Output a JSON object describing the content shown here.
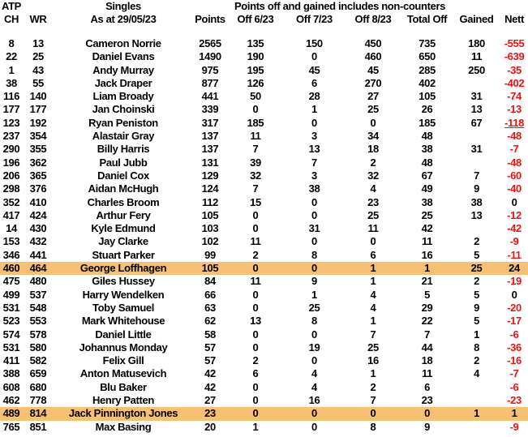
{
  "colors": {
    "text": "#000000",
    "background": "#FFFFFF",
    "nett_negative": "#EE1111",
    "row_highlight": "#F7C173"
  },
  "header": {
    "atp": "ATP",
    "ch": "CH",
    "wr": "WR",
    "singles": "Singles",
    "as_at": "As at 29/05/23",
    "banner": "Points off and gained includes non-counters",
    "points": "Points",
    "off_6_23": "Off 6/23",
    "off_7_23": "Off 7/23",
    "off_8_23": "Off 8/23",
    "total_off": "Total Off",
    "gained": "Gained",
    "nett": "Nett"
  },
  "rows": [
    {
      "ch": "8",
      "wr": "13",
      "name": "Cameron Norrie",
      "points": "2565",
      "off_6_23": "135",
      "off_7_23": "150",
      "off_8_23": "450",
      "total_off": "735",
      "gained": "180",
      "nett": "-555",
      "nett_color": "red",
      "highlight": false
    },
    {
      "ch": "22",
      "wr": "25",
      "name": "Daniel Evans",
      "points": "1490",
      "off_6_23": "190",
      "off_7_23": "0",
      "off_8_23": "460",
      "total_off": "650",
      "gained": "11",
      "nett": "-639",
      "nett_color": "red",
      "highlight": false
    },
    {
      "ch": "1",
      "wr": "43",
      "name": "Andy Murray",
      "points": "975",
      "off_6_23": "195",
      "off_7_23": "45",
      "off_8_23": "45",
      "total_off": "285",
      "gained": "250",
      "nett": "-35",
      "nett_color": "red",
      "highlight": false
    },
    {
      "ch": "38",
      "wr": "55",
      "name": "Jack Draper",
      "points": "877",
      "off_6_23": "126",
      "off_7_23": "6",
      "off_8_23": "270",
      "total_off": "402",
      "gained": "",
      "nett": "-402",
      "nett_color": "red",
      "highlight": false
    },
    {
      "ch": "116",
      "wr": "140",
      "name": "Liam Broady",
      "points": "441",
      "off_6_23": "50",
      "off_7_23": "28",
      "off_8_23": "27",
      "total_off": "105",
      "gained": "31",
      "nett": "-74",
      "nett_color": "red",
      "highlight": false
    },
    {
      "ch": "177",
      "wr": "177",
      "name": "Jan Choinski",
      "points": "339",
      "off_6_23": "0",
      "off_7_23": "1",
      "off_8_23": "25",
      "total_off": "26",
      "gained": "13",
      "nett": "-13",
      "nett_color": "red",
      "highlight": false
    },
    {
      "ch": "123",
      "wr": "192",
      "name": "Ryan Peniston",
      "points": "317",
      "off_6_23": "185",
      "off_7_23": "0",
      "off_8_23": "0",
      "total_off": "185",
      "gained": "67",
      "nett": "-118",
      "nett_color": "red",
      "nett_underline": true,
      "highlight": false
    },
    {
      "ch": "237",
      "wr": "354",
      "name": "Alastair Gray",
      "points": "137",
      "off_6_23": "11",
      "off_7_23": "3",
      "off_8_23": "34",
      "total_off": "48",
      "gained": "",
      "nett": "-48",
      "nett_color": "red",
      "highlight": false
    },
    {
      "ch": "290",
      "wr": "355",
      "name": "Billy Harris",
      "points": "137",
      "off_6_23": "7",
      "off_7_23": "13",
      "off_8_23": "18",
      "total_off": "38",
      "gained": "31",
      "nett": "-7",
      "nett_color": "red",
      "highlight": false
    },
    {
      "ch": "196",
      "wr": "362",
      "name": "Paul Jubb",
      "points": "131",
      "off_6_23": "39",
      "off_7_23": "7",
      "off_8_23": "2",
      "total_off": "48",
      "gained": "",
      "nett": "-48",
      "nett_color": "red",
      "highlight": false
    },
    {
      "ch": "206",
      "wr": "365",
      "name": "Daniel Cox",
      "points": "129",
      "off_6_23": "32",
      "off_7_23": "3",
      "off_8_23": "32",
      "total_off": "67",
      "gained": "7",
      "nett": "-60",
      "nett_color": "red",
      "highlight": false
    },
    {
      "ch": "298",
      "wr": "376",
      "name": "Aidan McHugh",
      "points": "124",
      "off_6_23": "7",
      "off_7_23": "38",
      "off_8_23": "4",
      "total_off": "49",
      "gained": "9",
      "nett": "-40",
      "nett_color": "red",
      "highlight": false
    },
    {
      "ch": "352",
      "wr": "410",
      "name": "Charles Broom",
      "points": "112",
      "off_6_23": "15",
      "off_7_23": "0",
      "off_8_23": "23",
      "total_off": "38",
      "gained": "38",
      "nett": "0",
      "nett_color": "black",
      "highlight": false
    },
    {
      "ch": "417",
      "wr": "424",
      "name": "Arthur Fery",
      "points": "105",
      "off_6_23": "0",
      "off_7_23": "0",
      "off_8_23": "25",
      "total_off": "25",
      "gained": "13",
      "nett": "-12",
      "nett_color": "red",
      "highlight": false
    },
    {
      "ch": "14",
      "wr": "430",
      "name": "Kyle Edmund",
      "points": "103",
      "off_6_23": "0",
      "off_7_23": "31",
      "off_8_23": "11",
      "total_off": "42",
      "gained": "",
      "nett": "-42",
      "nett_color": "red",
      "highlight": false
    },
    {
      "ch": "153",
      "wr": "432",
      "name": "Jay Clarke",
      "points": "102",
      "off_6_23": "11",
      "off_7_23": "0",
      "off_8_23": "0",
      "total_off": "11",
      "gained": "2",
      "nett": "-9",
      "nett_color": "red",
      "highlight": false
    },
    {
      "ch": "346",
      "wr": "441",
      "name": "Stuart Parker",
      "points": "99",
      "off_6_23": "2",
      "off_7_23": "8",
      "off_8_23": "6",
      "total_off": "16",
      "gained": "5",
      "nett": "-11",
      "nett_color": "red",
      "highlight": false
    },
    {
      "ch": "460",
      "wr": "464",
      "name": "George Loffhagen",
      "points": "105",
      "off_6_23": "0",
      "off_7_23": "0",
      "off_8_23": "1",
      "total_off": "1",
      "gained": "25",
      "nett": "24",
      "nett_color": "black",
      "highlight": true
    },
    {
      "ch": "475",
      "wr": "480",
      "name": "Giles Hussey",
      "points": "84",
      "off_6_23": "11",
      "off_7_23": "9",
      "off_8_23": "1",
      "total_off": "21",
      "gained": "2",
      "nett": "-19",
      "nett_color": "red",
      "highlight": false
    },
    {
      "ch": "499",
      "wr": "537",
      "name": "Harry Wendelken",
      "points": "66",
      "off_6_23": "0",
      "off_7_23": "1",
      "off_8_23": "4",
      "total_off": "5",
      "gained": "5",
      "nett": "0",
      "nett_color": "black",
      "highlight": false
    },
    {
      "ch": "531",
      "wr": "548",
      "name": "Toby Samuel",
      "points": "63",
      "off_6_23": "0",
      "off_7_23": "25",
      "off_8_23": "4",
      "total_off": "29",
      "gained": "9",
      "nett": "-20",
      "nett_color": "red",
      "highlight": false
    },
    {
      "ch": "523",
      "wr": "553",
      "name": "Mark Whitehouse",
      "points": "62",
      "off_6_23": "13",
      "off_7_23": "8",
      "off_8_23": "1",
      "total_off": "22",
      "gained": "5",
      "nett": "-17",
      "nett_color": "red",
      "highlight": false
    },
    {
      "ch": "574",
      "wr": "578",
      "name": "Daniel Little",
      "points": "58",
      "off_6_23": "0",
      "off_7_23": "0",
      "off_8_23": "7",
      "total_off": "7",
      "gained": "1",
      "nett": "-6",
      "nett_color": "red",
      "highlight": false
    },
    {
      "ch": "531",
      "wr": "580",
      "name": "Johannus Monday",
      "points": "57",
      "off_6_23": "0",
      "off_7_23": "19",
      "off_8_23": "25",
      "total_off": "44",
      "gained": "8",
      "nett": "-36",
      "nett_color": "red",
      "highlight": false
    },
    {
      "ch": "411",
      "wr": "582",
      "name": "Felix Gill",
      "points": "57",
      "off_6_23": "2",
      "off_7_23": "0",
      "off_8_23": "16",
      "total_off": "18",
      "gained": "2",
      "nett": "-16",
      "nett_color": "red",
      "highlight": false
    },
    {
      "ch": "388",
      "wr": "659",
      "name": "Anton Matusevich",
      "points": "42",
      "off_6_23": "6",
      "off_7_23": "4",
      "off_8_23": "1",
      "total_off": "11",
      "gained": "4",
      "nett": "-7",
      "nett_color": "red",
      "highlight": false
    },
    {
      "ch": "608",
      "wr": "680",
      "name": "Blu Baker",
      "points": "42",
      "off_6_23": "0",
      "off_7_23": "4",
      "off_8_23": "2",
      "total_off": "6",
      "gained": "",
      "nett": "-6",
      "nett_color": "red",
      "highlight": false
    },
    {
      "ch": "462",
      "wr": "778",
      "name": "Henry Patten",
      "points": "27",
      "off_6_23": "0",
      "off_7_23": "16",
      "off_8_23": "7",
      "total_off": "23",
      "gained": "",
      "nett": "-23",
      "nett_color": "red",
      "highlight": false
    },
    {
      "ch": "489",
      "wr": "814",
      "name": "Jack Pinnington Jones",
      "points": "23",
      "off_6_23": "0",
      "off_7_23": "0",
      "off_8_23": "0",
      "total_off": "0",
      "gained": "1",
      "nett": "1",
      "nett_color": "black",
      "highlight": true
    },
    {
      "ch": "765",
      "wr": "851",
      "name": "Max Basing",
      "points": "20",
      "off_6_23": "1",
      "off_7_23": "0",
      "off_8_23": "8",
      "total_off": "9",
      "gained": "",
      "nett": "-9",
      "nett_color": "red",
      "highlight": false
    }
  ]
}
